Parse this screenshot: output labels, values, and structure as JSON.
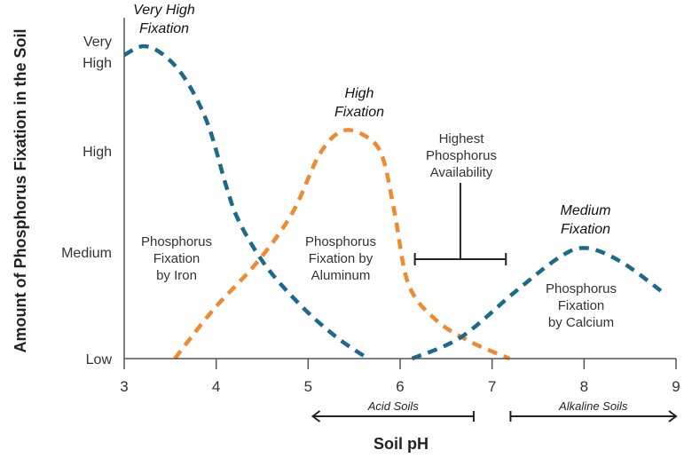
{
  "chart_data": {
    "type": "line",
    "title": "",
    "xlabel": "Soil pH",
    "ylabel": "Amount of Phosphorus Fixation in the Soil",
    "xlim": [
      3,
      9
    ],
    "x_ticks": [
      "3",
      "4",
      "5",
      "6",
      "7",
      "8",
      "9"
    ],
    "y_levels": [
      "Low",
      "Medium",
      "High",
      "Very High"
    ],
    "y_tick_labels": [
      [
        "Low"
      ],
      [
        "Medium"
      ],
      [
        "High"
      ],
      [
        "Very",
        "High"
      ]
    ],
    "ylim": [
      0,
      3.2
    ],
    "grid": false,
    "series": [
      {
        "name": "Phosphorus Fixation by Iron",
        "label_lines": [
          "Phosphorus",
          "Fixation",
          "by Iron"
        ],
        "color": "#1b6a8c",
        "peak_label": [
          "Very High",
          "Fixation"
        ],
        "x": [
          3.0,
          3.21,
          3.43,
          3.67,
          3.91,
          4.11,
          4.25,
          4.54,
          4.93,
          5.31,
          5.65
        ],
        "y": [
          3.08,
          3.18,
          3.08,
          2.8,
          2.3,
          1.65,
          1.3,
          0.87,
          0.49,
          0.2,
          0
        ]
      },
      {
        "name": "Phosphorus Fixation by Aluminum",
        "label_lines": [
          "Phosphorus",
          "Fixation by",
          "Aluminum"
        ],
        "color": "#ef8a2e",
        "peak_label": [
          "High",
          "Fixation"
        ],
        "x": [
          3.55,
          3.96,
          4.45,
          4.83,
          5.12,
          5.36,
          5.6,
          5.8,
          5.94,
          6.09,
          6.38,
          6.76,
          7.19
        ],
        "y": [
          0,
          0.45,
          0.91,
          1.39,
          1.96,
          2.22,
          2.18,
          1.96,
          1.39,
          0.7,
          0.37,
          0.16,
          0
        ]
      },
      {
        "name": "Phosphorus Fixation by Calcium",
        "label_lines": [
          "Phosphorus",
          "Fixation",
          "by Calcium"
        ],
        "color": "#1b6a8c",
        "peak_label": [
          "Medium",
          "Fixation"
        ],
        "x": [
          6.13,
          6.66,
          7.24,
          7.73,
          8.02,
          8.4,
          8.86
        ],
        "y": [
          0,
          0.2,
          0.62,
          0.95,
          1.04,
          0.91,
          0.62
        ]
      }
    ],
    "annotations": {
      "highest_availability": {
        "lines": [
          "Highest",
          "Phosphorus",
          "Availability"
        ],
        "x_range": [
          6.16,
          7.15
        ]
      },
      "acid_soils": {
        "label": "Acid Soils",
        "x_range": [
          5.05,
          6.8
        ]
      },
      "alkaline_soils": {
        "label": "Alkaline Soils",
        "x_range": [
          7.2,
          9.0
        ]
      }
    }
  }
}
